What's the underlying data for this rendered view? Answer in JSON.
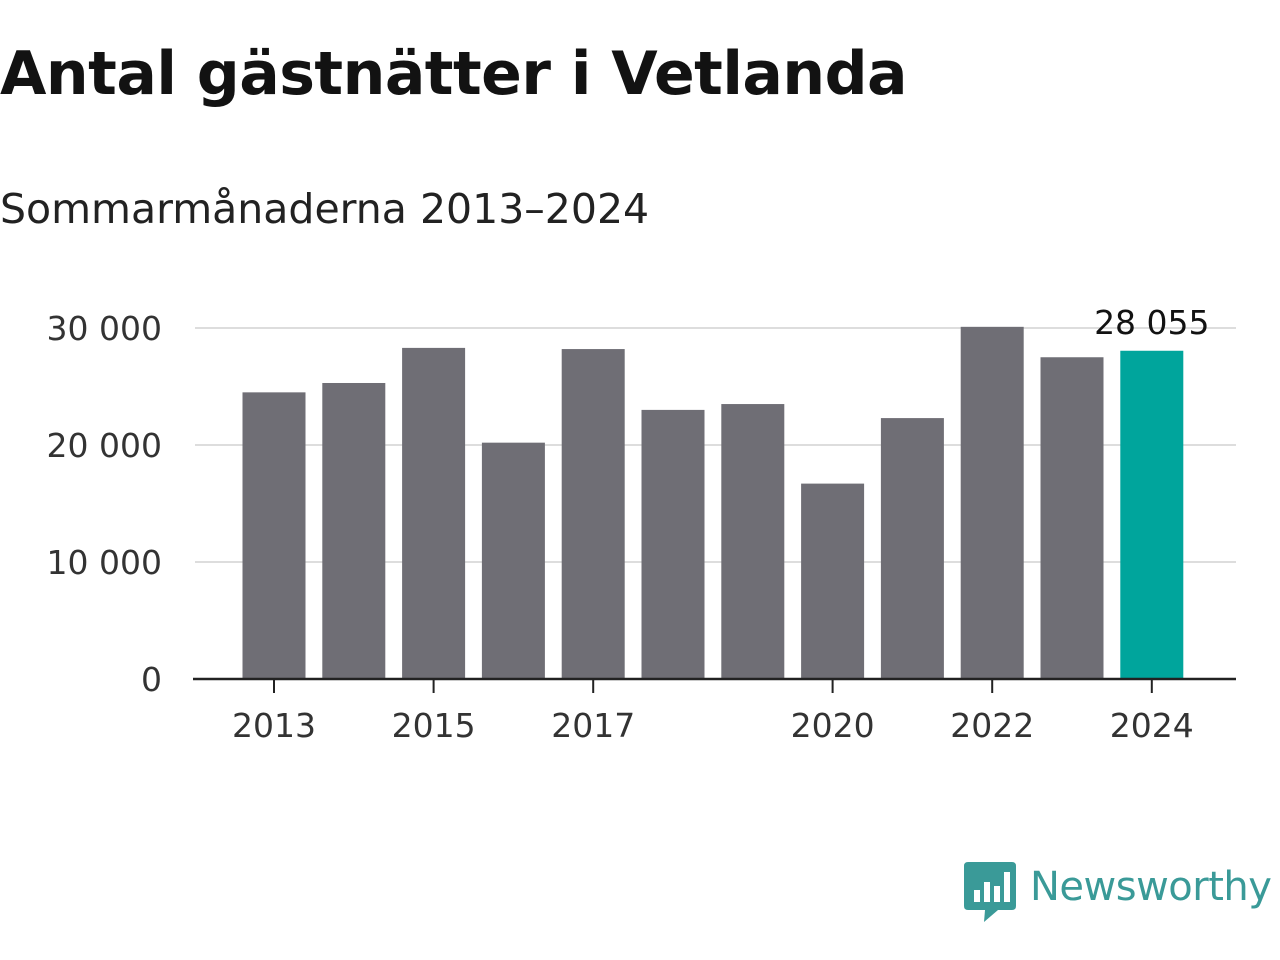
{
  "title": "Antal gästnätter i Vetlanda",
  "subtitle": "Sommarmånaderna 2013–2024",
  "brand": {
    "name": "Newsworthy",
    "icon": "newsworthy-logo-icon",
    "color": "#3a9a98"
  },
  "colors": {
    "bar": "#6f6e75",
    "highlight": "#00a59c",
    "grid": "#dddddd",
    "axis": "#222222"
  },
  "chart_data": {
    "type": "bar",
    "title": "Antal gästnätter i Vetlanda",
    "subtitle": "Sommarmånaderna 2013–2024",
    "xlabel": "",
    "ylabel": "",
    "categories": [
      "2013",
      "2014",
      "2015",
      "2016",
      "2017",
      "2018",
      "2019",
      "2020",
      "2021",
      "2022",
      "2023",
      "2024"
    ],
    "values": [
      24500,
      25300,
      28300,
      20200,
      28200,
      23000,
      23500,
      16700,
      22300,
      30100,
      27500,
      28055
    ],
    "highlight_index": 11,
    "x_tick_labels": [
      "2013",
      "2015",
      "2017",
      "2020",
      "2022",
      "2024"
    ],
    "y_ticks": [
      0,
      10000,
      20000,
      30000
    ],
    "y_tick_labels": [
      "0",
      "10 000",
      "20 000",
      "30 000"
    ],
    "ylim": [
      0,
      30000
    ],
    "grid": true,
    "legend": "none",
    "annotations": [
      {
        "category": "2024",
        "label": "28 055"
      }
    ]
  }
}
